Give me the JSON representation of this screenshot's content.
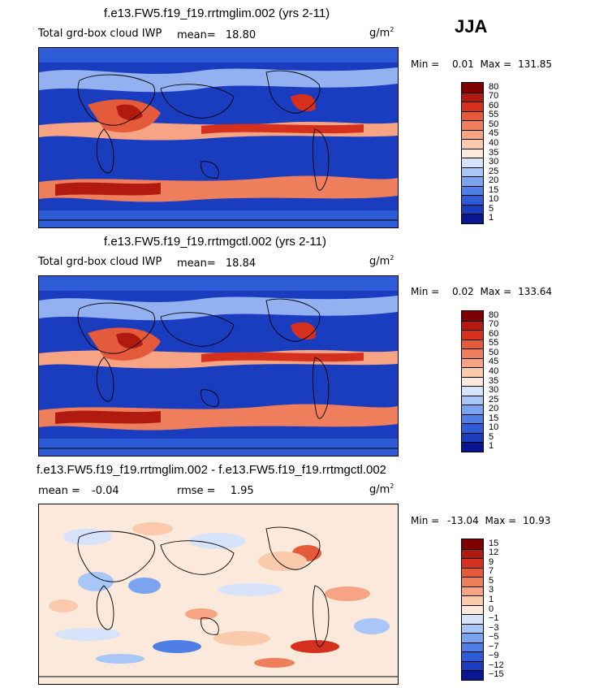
{
  "season": "JJA",
  "panels": [
    {
      "title": "f.e13.FW5.f19_f19.rrtmglim.002 (yrs 2-11)",
      "variable": "Total grd-box cloud IWP",
      "mean_label": "mean=",
      "mean_value": "18.80",
      "units": "g/m",
      "units_sup": "2",
      "min_label": "Min =",
      "min_value": "0.01",
      "max_label": "Max =",
      "max_value": "131.85",
      "scale": "seq",
      "colorbar_labels": [
        "80",
        "70",
        "60",
        "55",
        "50",
        "45",
        "40",
        "35",
        "30",
        "25",
        "20",
        "15",
        "10",
        "5",
        "1"
      ]
    },
    {
      "title": "f.e13.FW5.f19_f19.rrtmgctl.002 (yrs 2-11)",
      "variable": "Total grd-box cloud IWP",
      "mean_label": "mean=",
      "mean_value": "18.84",
      "units": "g/m",
      "units_sup": "2",
      "min_label": "Min =",
      "min_value": "0.02",
      "max_label": "Max =",
      "max_value": "133.64",
      "scale": "seq",
      "colorbar_labels": [
        "80",
        "70",
        "60",
        "55",
        "50",
        "45",
        "40",
        "35",
        "30",
        "25",
        "20",
        "15",
        "10",
        "5",
        "1"
      ]
    },
    {
      "title": "f.e13.FW5.f19_f19.rrtmglim.002 - f.e13.FW5.f19_f19.rrtmgctl.002",
      "mean_label": "mean =",
      "mean_value": "-0.04",
      "rmse_label": "rmse =",
      "rmse_value": "1.95",
      "units": "g/m",
      "units_sup": "2",
      "min_label": "Min =",
      "min_value": "-13.04",
      "max_label": "Max =",
      "max_value": "10.93",
      "scale": "div",
      "colorbar_labels": [
        "15",
        "12",
        "9",
        "7",
        "5",
        "3",
        "1",
        "0",
        "-1",
        "-3",
        "-5",
        "-7",
        "-9",
        "-12",
        "-15"
      ]
    }
  ],
  "colors": {
    "seq": [
      "#7f0000",
      "#b01a0f",
      "#d4301d",
      "#e45a3a",
      "#ee7e5c",
      "#f6a483",
      "#fbcaad",
      "#fbe9dc",
      "#d6e3fb",
      "#a9c6f8",
      "#7aa4f0",
      "#4f7fe6",
      "#2e5bd6",
      "#1a3cbf",
      "#08168f"
    ],
    "div": [
      "#7f0000",
      "#b01a0f",
      "#d4301d",
      "#e45a3a",
      "#ee7e5c",
      "#f6a483",
      "#fbcaad",
      "#fbe9dc",
      "#d6e3fb",
      "#a9c6f8",
      "#7aa4f0",
      "#4f7fe6",
      "#2e5bd6",
      "#1a3cbf",
      "#08168f"
    ]
  },
  "chart_data": [
    {
      "type": "heatmap",
      "title": "f.e13.FW5.f19_f19.rrtmglim.002 (yrs 2-11)",
      "variable": "Total grd-box cloud IWP",
      "units": "g/m2",
      "mean": 18.8,
      "min": 0.01,
      "max": 131.85,
      "contour_levels": [
        1,
        5,
        10,
        15,
        20,
        25,
        30,
        35,
        40,
        45,
        50,
        55,
        60,
        70,
        80
      ]
    },
    {
      "type": "heatmap",
      "title": "f.e13.FW5.f19_f19.rrtmgctl.002 (yrs 2-11)",
      "variable": "Total grd-box cloud IWP",
      "units": "g/m2",
      "mean": 18.84,
      "min": 0.02,
      "max": 133.64,
      "contour_levels": [
        1,
        5,
        10,
        15,
        20,
        25,
        30,
        35,
        40,
        45,
        50,
        55,
        60,
        70,
        80
      ]
    },
    {
      "type": "heatmap",
      "title": "f.e13.FW5.f19_f19.rrtmglim.002 - f.e13.FW5.f19_f19.rrtmgctl.002",
      "units": "g/m2",
      "mean": -0.04,
      "rmse": 1.95,
      "min": -13.04,
      "max": 10.93,
      "contour_levels": [
        -15,
        -12,
        -9,
        -7,
        -5,
        -3,
        -1,
        0,
        1,
        3,
        5,
        7,
        9,
        12,
        15
      ]
    }
  ]
}
